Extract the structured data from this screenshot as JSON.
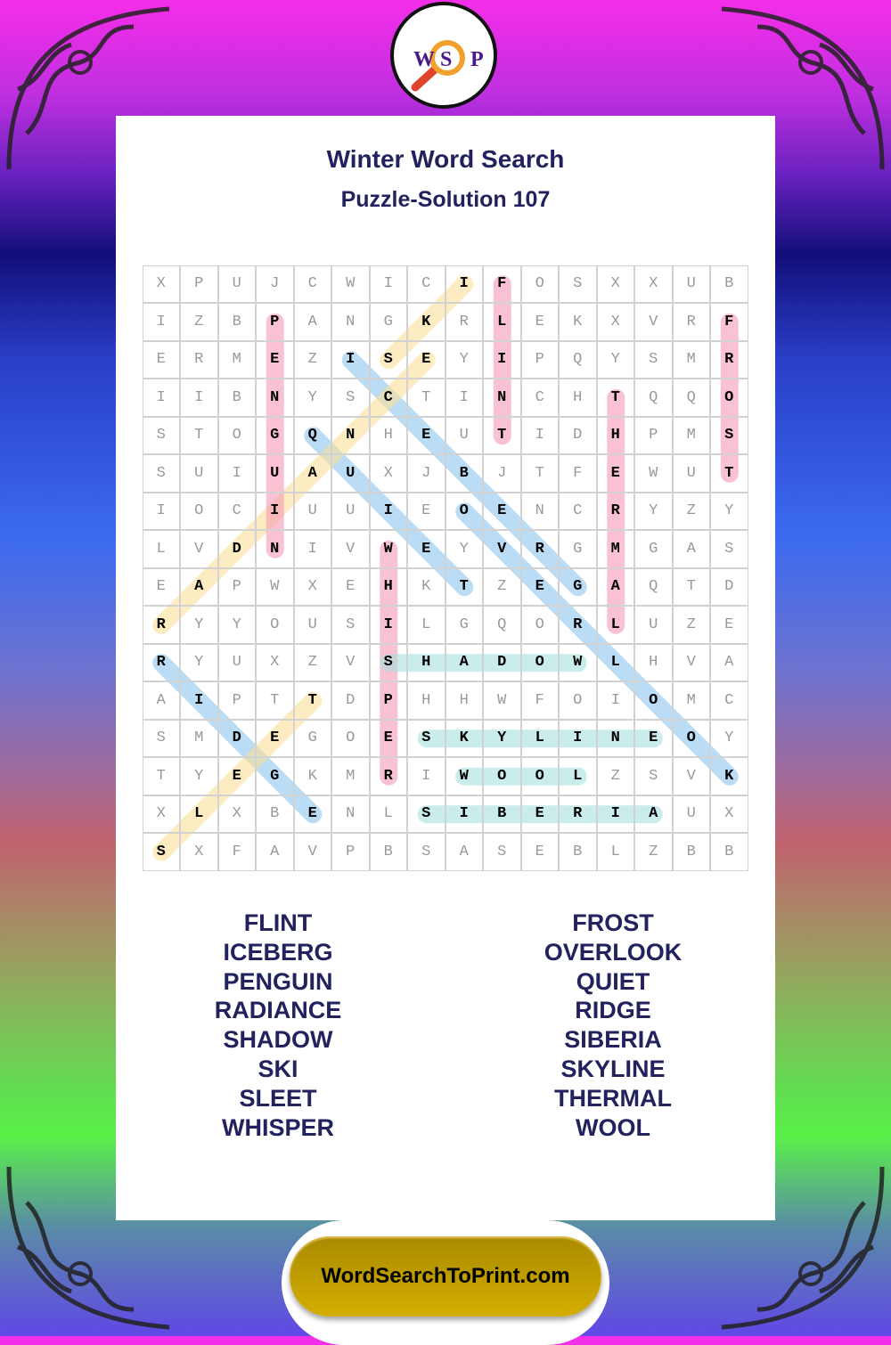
{
  "logo": {
    "letters": [
      "W",
      "S",
      "P"
    ]
  },
  "header": {
    "title": "Winter Word Search",
    "subtitle": "Puzzle-Solution 107"
  },
  "grid": [
    "XPUJCWICIFOSXXUB",
    "IZBPANGKRLEKXVRF",
    "ERMEZISEYIPQYSMR",
    "IIBNYSCTINCHTQQO",
    "STOGQNHEUTIDHPMS",
    "SUIUAUXJBJTFEWUT",
    "IOCIUUIEOENCRYZY",
    "LVDNIVWEYVRGMGAS",
    "EAPWXEHKTZEGAQTD",
    "RYYOUSILGQORLUZE",
    "RYUXZVSHADOWLHVA",
    "AIPTTDPHHWFOIOMC",
    "SMDEGOESKYLINEOY",
    "TYEGKMRIWOOLZSVK",
    "XLXBENLSIBERIAUX",
    "SXFAVPBSASEBLZBB"
  ],
  "colors": {
    "blue": "#8cc6ee",
    "yellow": "#fbdf98",
    "pink": "#f59ab4",
    "teal": "#a6e0dc"
  },
  "solutions": [
    {
      "word": "ICEBERG",
      "color": "blue",
      "start": [
        2,
        5
      ],
      "end": [
        8,
        11
      ]
    },
    {
      "word": "QUIET",
      "color": "blue",
      "start": [
        4,
        4
      ],
      "end": [
        8,
        8
      ]
    },
    {
      "word": "OVERLOOK",
      "color": "blue",
      "start": [
        6,
        8
      ],
      "end": [
        13,
        15
      ]
    },
    {
      "word": "RIDGE",
      "color": "blue",
      "start": [
        10,
        0
      ],
      "end": [
        14,
        4
      ]
    },
    {
      "word": "SKI",
      "color": "yellow",
      "start": [
        2,
        6
      ],
      "end": [
        0,
        8
      ]
    },
    {
      "word": "RADIANCE",
      "color": "yellow",
      "start": [
        9,
        0
      ],
      "end": [
        2,
        7
      ]
    },
    {
      "word": "SLEET",
      "color": "yellow",
      "start": [
        15,
        0
      ],
      "end": [
        11,
        4
      ]
    },
    {
      "word": "PENGUIN",
      "color": "pink",
      "start": [
        1,
        3
      ],
      "end": [
        7,
        3
      ]
    },
    {
      "word": "FLINT",
      "color": "pink",
      "start": [
        0,
        9
      ],
      "end": [
        4,
        9
      ]
    },
    {
      "word": "FROST",
      "color": "pink",
      "start": [
        1,
        15
      ],
      "end": [
        5,
        15
      ]
    },
    {
      "word": "THERMAL",
      "color": "pink",
      "start": [
        3,
        12
      ],
      "end": [
        9,
        12
      ]
    },
    {
      "word": "WHISPER",
      "color": "pink",
      "start": [
        7,
        6
      ],
      "end": [
        13,
        6
      ]
    },
    {
      "word": "SHADOW",
      "color": "teal",
      "start": [
        10,
        6
      ],
      "end": [
        10,
        11
      ]
    },
    {
      "word": "SKYLINE",
      "color": "teal",
      "start": [
        12,
        7
      ],
      "end": [
        12,
        13
      ]
    },
    {
      "word": "WOOL",
      "color": "teal",
      "start": [
        13,
        8
      ],
      "end": [
        13,
        11
      ]
    },
    {
      "word": "SIBERIA",
      "color": "teal",
      "start": [
        14,
        7
      ],
      "end": [
        14,
        13
      ]
    }
  ],
  "word_list": {
    "left": [
      "FLINT",
      "ICEBERG",
      "PENGUIN",
      "RADIANCE",
      "SHADOW",
      "SKI",
      "SLEET",
      "WHISPER"
    ],
    "right": [
      "FROST",
      "OVERLOOK",
      "QUIET",
      "RIDGE",
      "SIBERIA",
      "SKYLINE",
      "THERMAL",
      "WOOL"
    ]
  },
  "footer": {
    "site_label": "WordSearchToPrint.com"
  }
}
